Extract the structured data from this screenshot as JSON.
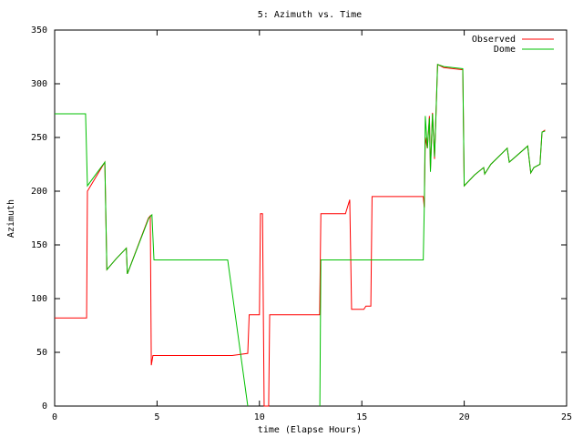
{
  "chart_data": {
    "type": "line",
    "title": "5: Azimuth vs. Time",
    "x_label": "time (Elapse Hours)",
    "y_label": "Azimuth",
    "xlim": [
      0,
      25
    ],
    "ylim": [
      0,
      350
    ],
    "xticks": [
      0,
      5,
      10,
      15,
      20,
      25
    ],
    "yticks": [
      0,
      50,
      100,
      150,
      200,
      250,
      300,
      350
    ],
    "grid": false,
    "legend": "top-right",
    "series": [
      {
        "name": "Observed",
        "color": "#ff0000",
        "x": [
          0,
          1.56,
          1.6,
          2.45,
          2.55,
          3.0,
          3.5,
          3.55,
          4.58,
          4.67,
          4.72,
          4.8,
          8.67,
          9.43,
          9.5,
          10.0,
          10.05,
          10.15,
          10.23,
          10.45,
          10.5,
          12.94,
          13.0,
          14.2,
          14.41,
          14.5,
          15.1,
          15.2,
          15.44,
          15.5,
          18.0,
          18.05,
          18.1,
          18.2,
          18.3,
          18.35,
          18.45,
          18.55,
          18.6,
          18.7,
          19.0,
          19.93,
          20.0,
          20.5,
          20.95,
          21.0,
          21.3,
          22.1,
          22.2,
          23.1,
          23.25,
          23.4,
          23.7,
          23.8,
          23.95
        ],
        "values": [
          82,
          82,
          200,
          227,
          127,
          137,
          147,
          123,
          175,
          177,
          38,
          47,
          47,
          49,
          85,
          85,
          179,
          179,
          0,
          0,
          85,
          85,
          179,
          179,
          192,
          90,
          90,
          93,
          93,
          195,
          195,
          185,
          250,
          240,
          270,
          220,
          273,
          230,
          260,
          318,
          315,
          313,
          205,
          215,
          222,
          216,
          225,
          240,
          227,
          242,
          217,
          222,
          225,
          255,
          257
        ]
      },
      {
        "name": "Dome",
        "color": "#00c000",
        "x": [
          0,
          1.51,
          1.6,
          2.45,
          2.55,
          3.0,
          3.5,
          3.55,
          4.6,
          4.75,
          4.85,
          8.45,
          9.43,
          null,
          12.95,
          13.0,
          18.0,
          18.05,
          18.1,
          18.2,
          18.3,
          18.35,
          18.45,
          18.55,
          18.6,
          18.7,
          19.0,
          19.93,
          20.0,
          20.5,
          20.95,
          21.0,
          21.3,
          22.1,
          22.2,
          23.1,
          23.25,
          23.4,
          23.7,
          23.8,
          23.95
        ],
        "values": [
          272,
          272,
          205,
          227,
          127,
          137,
          147,
          123,
          175,
          178,
          136,
          136,
          0,
          null,
          0,
          136,
          136,
          185,
          270,
          240,
          268,
          218,
          272,
          232,
          258,
          318,
          316,
          314,
          205,
          215,
          222,
          216,
          225,
          240,
          227,
          242,
          217,
          222,
          225,
          255,
          256
        ]
      }
    ]
  }
}
